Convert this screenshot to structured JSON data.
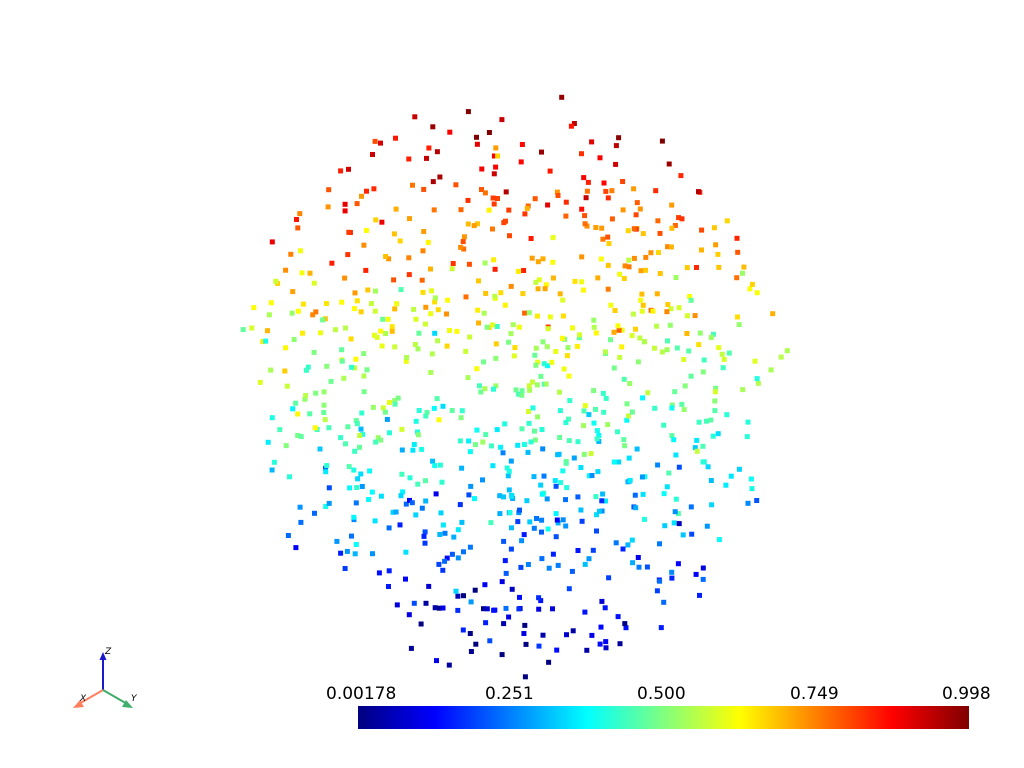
{
  "chart_data": {
    "type": "scatter",
    "title": "",
    "scalar_range": [
      0.00178,
      0.998
    ],
    "colormap": "jet",
    "point_count": 900,
    "background": "#ffffff",
    "colorbar": {
      "orientation": "horizontal",
      "placement": "bottom",
      "tick_labels": [
        "0.00178",
        "0.251",
        "0.500",
        "0.749",
        "0.998"
      ],
      "colors": [
        "#000080",
        "#0000ff",
        "#00ffff",
        "#ffff00",
        "#ff0000",
        "#800000"
      ]
    }
  },
  "orientation_axes": {
    "x_label": "X",
    "y_label": "Y",
    "z_label": "Z",
    "x_color": "#ff7f5f",
    "y_color": "#3fae6a",
    "z_color": "#1a1acc"
  }
}
